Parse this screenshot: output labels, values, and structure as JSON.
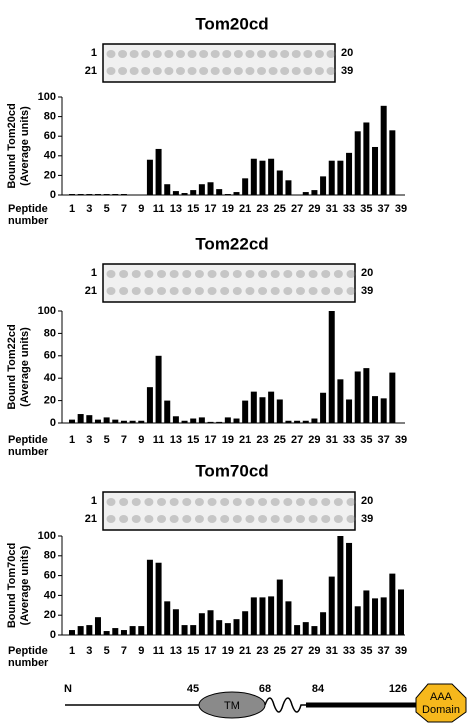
{
  "chart_data": [
    {
      "type": "bar",
      "title": "Tom20cd",
      "ylabel": [
        "Bound  Tom20cd",
        "(Average units)"
      ],
      "xlabel": [
        "Peptide",
        "number"
      ],
      "blot_labels": [
        "1",
        "20",
        "21",
        "39"
      ],
      "color": "#000000",
      "categories": [
        "1",
        null,
        "3",
        null,
        "5",
        null,
        "7",
        null,
        "9",
        null,
        "11",
        null,
        "13",
        null,
        "15",
        null,
        "17",
        null,
        "19",
        null,
        "21",
        null,
        "23",
        null,
        "25",
        null,
        "27",
        null,
        "29",
        null,
        "31",
        null,
        "33",
        null,
        "35",
        null,
        "37",
        null,
        "39"
      ],
      "values": [
        1,
        1,
        1,
        1,
        1,
        1,
        1,
        0,
        0,
        36,
        47,
        11,
        4,
        2,
        5,
        11,
        13,
        6,
        1,
        3,
        17,
        37,
        35,
        37,
        25,
        15,
        0,
        3,
        5,
        19,
        35,
        35,
        43,
        65,
        74,
        49,
        91,
        66,
        0
      ],
      "ylim": [
        0,
        100
      ],
      "yticks": [
        0,
        20,
        40,
        60,
        80,
        100
      ]
    },
    {
      "type": "bar",
      "title": "Tom22cd",
      "ylabel": [
        "Bound  Tom22cd",
        "(Average units)"
      ],
      "xlabel": [
        "Peptide",
        "number"
      ],
      "blot_labels": [
        "1",
        "20",
        "21",
        "39"
      ],
      "color": "#000000",
      "categories": [
        "1",
        null,
        "3",
        null,
        "5",
        null,
        "7",
        null,
        "9",
        null,
        "11",
        null,
        "13",
        null,
        "15",
        null,
        "17",
        null,
        "19",
        null,
        "21",
        null,
        "23",
        null,
        "25",
        null,
        "27",
        null,
        "29",
        null,
        "31",
        null,
        "33",
        null,
        "35",
        null,
        "37",
        null,
        "39"
      ],
      "values": [
        3,
        8,
        7,
        3,
        5,
        3,
        2,
        2,
        2,
        32,
        60,
        20,
        6,
        2,
        4,
        5,
        1,
        1,
        5,
        4,
        20,
        28,
        23,
        28,
        21,
        2,
        2,
        2,
        4,
        27,
        100,
        39,
        21,
        46,
        49,
        24,
        22,
        45,
        0
      ],
      "ylim": [
        0,
        100
      ],
      "yticks": [
        0,
        20,
        40,
        60,
        80,
        100
      ]
    },
    {
      "type": "bar",
      "title": "Tom70cd",
      "ylabel": [
        "Bound  Tom70cd",
        "(Average units)"
      ],
      "xlabel": [
        "Peptide",
        "number"
      ],
      "blot_labels": [
        "1",
        "20",
        "21",
        "39"
      ],
      "color": "#000000",
      "categories": [
        "1",
        null,
        "3",
        null,
        "5",
        null,
        "7",
        null,
        "9",
        null,
        "11",
        null,
        "13",
        null,
        "15",
        null,
        "17",
        null,
        "19",
        null,
        "21",
        null,
        "23",
        null,
        "25",
        null,
        "27",
        null,
        "29",
        null,
        "31",
        null,
        "33",
        null,
        "35",
        null,
        "37",
        null,
        "39"
      ],
      "values": [
        5,
        9,
        10,
        18,
        4,
        7,
        5,
        9,
        9,
        76,
        73,
        34,
        26,
        10,
        10,
        22,
        25,
        15,
        12,
        16,
        24,
        38,
        38,
        39,
        56,
        34,
        10,
        13,
        9,
        23,
        59,
        100,
        93,
        29,
        45,
        37,
        38,
        62,
        46
      ],
      "ylim": [
        0,
        100
      ],
      "yticks": [
        0,
        20,
        40,
        60,
        80,
        100
      ]
    }
  ],
  "diagram": {
    "n_label": "N",
    "positions": [
      45,
      68,
      84,
      126
    ],
    "tm_label": "TM",
    "domain_label": [
      "AAA",
      "Domain"
    ]
  }
}
